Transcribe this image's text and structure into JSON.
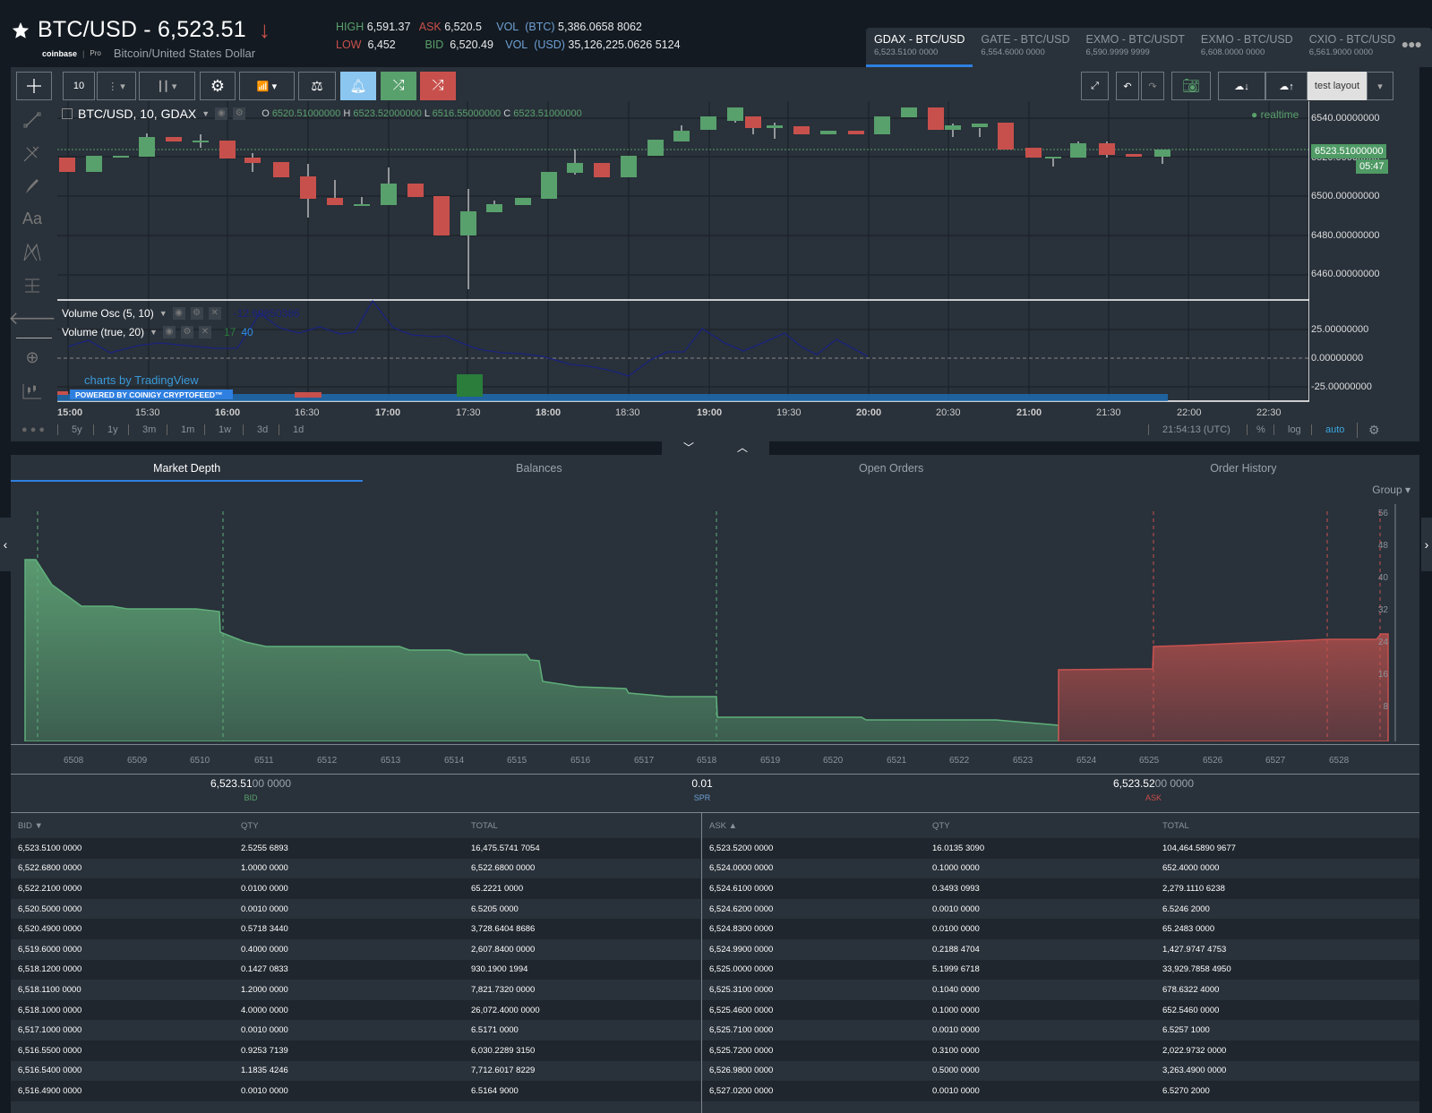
{
  "header": {
    "title": "BTC/USD - 6,523.51",
    "direction": "down",
    "exchange_logo": "coinbase",
    "exchange_sub": "Pro",
    "pair_name": "Bitcoin/United States Dollar",
    "stats": {
      "high_label": "HIGH",
      "high": "6,591.37",
      "low_label": "LOW",
      "low": "6,452",
      "ask_label": "ASK",
      "ask": "6,520.5",
      "bid_label": "BID",
      "bid": "6,520.49",
      "vol_btc_label": "VOL",
      "vol_btc_unit": "(BTC)",
      "vol_btc": "5,386.0658 8062",
      "vol_usd_label": "VOL",
      "vol_usd_unit": "(USD)",
      "vol_usd": "35,126,225.0626 5124"
    }
  },
  "exchange_tabs": [
    {
      "name": "GDAX - BTC/USD",
      "price": "6,523.5100 0000",
      "active": true
    },
    {
      "name": "GATE - BTC/USD",
      "price": "6,554.6000 0000",
      "active": false
    },
    {
      "name": "EXMO - BTC/USDT",
      "price": "6,590.9999 9999",
      "active": false
    },
    {
      "name": "EXMO - BTC/USD",
      "price": "6,608.0000 0000",
      "active": false
    },
    {
      "name": "CXIO - BTC/USD",
      "price": "6,561.9000 0000",
      "active": false
    }
  ],
  "toolbar": {
    "interval": "10",
    "layout_name": "test layout",
    "colors": {
      "alert": "#8bc6f0",
      "buy": "#58a06c",
      "sell": "#c8504c"
    }
  },
  "chart": {
    "legend_symbol": "BTC/USD, 10, GDAX",
    "ohlc": {
      "o_label": "O",
      "o": "6520.51000000",
      "h_label": "H",
      "h": "6523.52000000",
      "l_label": "L",
      "l": "6516.55000000",
      "c_label": "C",
      "c": "6523.51000000"
    },
    "realtime_label": "realtime",
    "price_axis": [
      "6540.00000000",
      "6520.00000000",
      "6500.00000000",
      "6480.00000000",
      "6460.00000000"
    ],
    "current_price_tag": "6523.51000000",
    "countdown": "05:47",
    "indicators": [
      {
        "name": "Volume Osc (5, 10)",
        "value": "-12.69850386"
      },
      {
        "name": "Volume (true, 20)",
        "value_a": "17",
        "value_b": "40"
      }
    ],
    "osc_axis": [
      "25.00000000",
      "0.00000000",
      "-25.00000000"
    ],
    "time_axis": [
      "15:00",
      "15:30",
      "16:00",
      "16:30",
      "17:00",
      "17:30",
      "18:00",
      "18:30",
      "19:00",
      "19:30",
      "20:00",
      "20:30",
      "21:00",
      "21:30",
      "22:00",
      "22:30"
    ],
    "watermark": "charts by TradingView",
    "powered_by": "POWERED BY COINIGY CRYPTOFEED™",
    "ranges": [
      "5y",
      "1y",
      "3m",
      "1m",
      "1w",
      "3d",
      "1d"
    ],
    "clock": "21:54:13 (UTC)",
    "percent_label": "%",
    "log_label": "log",
    "auto_label": "auto"
  },
  "panel_tabs": [
    {
      "label": "Market Depth",
      "active": true
    },
    {
      "label": "Balances",
      "active": false
    },
    {
      "label": "Open Orders",
      "active": false
    },
    {
      "label": "Order History",
      "active": false
    }
  ],
  "depth": {
    "group_label": "Group",
    "x_axis": [
      "6508",
      "6509",
      "6510",
      "6511",
      "6512",
      "6513",
      "6514",
      "6515",
      "6516",
      "6517",
      "6518",
      "6519",
      "6520",
      "6521",
      "6522",
      "6523",
      "6524",
      "6525",
      "6526",
      "6527",
      "6528"
    ],
    "y_axis": [
      "56",
      "48",
      "40",
      "32",
      "24",
      "16",
      "8"
    ],
    "bid_main": "6,523.51",
    "bid_dim": "00 0000",
    "bid_label": "BID",
    "spread": "0.01",
    "spread_label": "SPR",
    "ask_main": "6,523.52",
    "ask_dim": "00 0000",
    "ask_label": "ASK"
  },
  "bids": {
    "headers": [
      "BID ▼",
      "QTY",
      "TOTAL"
    ],
    "rows": [
      [
        "6,523.5100 0000",
        "2.5255 6893",
        "16,475.5741 7054"
      ],
      [
        "6,522.6800 0000",
        "1.0000 0000",
        "6,522.6800 0000"
      ],
      [
        "6,522.2100 0000",
        "0.0100 0000",
        "65.2221 0000"
      ],
      [
        "6,520.5000 0000",
        "0.0010 0000",
        "6.5205 0000"
      ],
      [
        "6,520.4900 0000",
        "0.5718 3440",
        "3,728.6404 8686"
      ],
      [
        "6,519.6000 0000",
        "0.4000 0000",
        "2,607.8400 0000"
      ],
      [
        "6,518.1200 0000",
        "0.1427 0833",
        "930.1900 1994"
      ],
      [
        "6,518.1100 0000",
        "1.2000 0000",
        "7,821.7320 0000"
      ],
      [
        "6,518.1000 0000",
        "4.0000 0000",
        "26,072.4000 0000"
      ],
      [
        "6,517.1000 0000",
        "0.0010 0000",
        "6.5171 0000"
      ],
      [
        "6,516.5500 0000",
        "0.9253 7139",
        "6,030.2289 3150"
      ],
      [
        "6,516.5400 0000",
        "1.1835 4246",
        "7,712.6017 8229"
      ],
      [
        "6,516.4900 0000",
        "0.0010 0000",
        "6.5164 9000"
      ]
    ]
  },
  "asks": {
    "headers": [
      "ASK ▲",
      "QTY",
      "TOTAL"
    ],
    "rows": [
      [
        "6,523.5200 0000",
        "16.0135 3090",
        "104,464.5890 9677"
      ],
      [
        "6,524.0000 0000",
        "0.1000 0000",
        "652.4000 0000"
      ],
      [
        "6,524.6100 0000",
        "0.3493 0993",
        "2,279.1110 6238"
      ],
      [
        "6,524.6200 0000",
        "0.0010 0000",
        "6.5246 2000"
      ],
      [
        "6,524.8300 0000",
        "0.0100 0000",
        "65.2483 0000"
      ],
      [
        "6,524.9900 0000",
        "0.2188 4704",
        "1,427.9747 4753"
      ],
      [
        "6,525.0000 0000",
        "5.1999 6718",
        "33,929.7858 4950"
      ],
      [
        "6,525.3100 0000",
        "0.1040 0000",
        "678.6322 4000"
      ],
      [
        "6,525.4600 0000",
        "0.1000 0000",
        "652.5460 0000"
      ],
      [
        "6,525.7100 0000",
        "0.0010 0000",
        "6.5257 1000"
      ],
      [
        "6,525.7200 0000",
        "0.3100 0000",
        "2,022.9732 0000"
      ],
      [
        "6,526.9800 0000",
        "0.5000 0000",
        "3,263.4900 0000"
      ],
      [
        "6,527.0200 0000",
        "0.0010 0000",
        "6.5270 2000"
      ]
    ]
  }
}
